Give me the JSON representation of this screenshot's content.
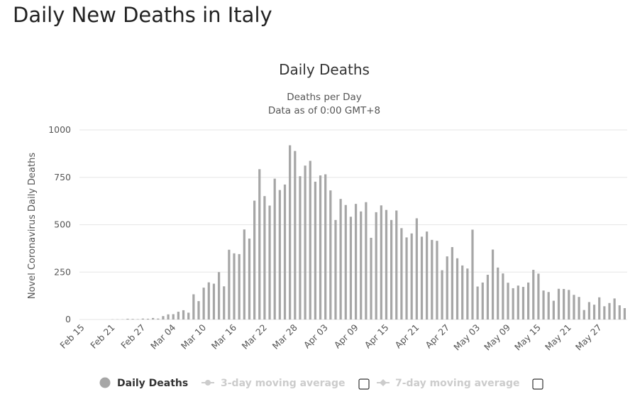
{
  "page": {
    "title": "Daily New Deaths in Italy"
  },
  "colors": {
    "bar": "#a6a6a6",
    "grid": "#e6e6e6",
    "legend_active": "#333333",
    "legend_inactive": "#cccccc",
    "legend_marker_active": "#a6a6a6"
  },
  "legend": {
    "items": [
      {
        "label": "Daily Deaths",
        "active": true,
        "has_checkbox": false,
        "marker": "circle"
      },
      {
        "label": "3-day moving average",
        "active": false,
        "has_checkbox": true,
        "marker": "line-circle"
      },
      {
        "label": "7-day moving average",
        "active": false,
        "has_checkbox": true,
        "marker": "line-diamond"
      }
    ]
  },
  "chart_data": {
    "type": "bar",
    "title": "Daily Deaths",
    "subtitle_lines": [
      "Deaths per Day",
      "Data as of 0:00 GMT+8"
    ],
    "ylabel": "Novel Coronavirus Daily Deaths",
    "xlabel": "",
    "ylim": [
      0,
      1000
    ],
    "yticks": [
      0,
      250,
      500,
      750,
      1000
    ],
    "grid": true,
    "legend_position": "bottom",
    "x_tick_labels": [
      "Feb 15",
      "Feb 21",
      "Feb 27",
      "Mar 04",
      "Mar 10",
      "Mar 16",
      "Mar 22",
      "Mar 28",
      "Apr 03",
      "Apr 09",
      "Apr 15",
      "Apr 21",
      "Apr 27",
      "May 03",
      "May 09",
      "May 15",
      "May 21",
      "May 27"
    ],
    "series": [
      {
        "name": "Daily Deaths",
        "categories": [
          "Feb 15",
          "Feb 16",
          "Feb 17",
          "Feb 18",
          "Feb 19",
          "Feb 20",
          "Feb 21",
          "Feb 22",
          "Feb 23",
          "Feb 24",
          "Feb 25",
          "Feb 26",
          "Feb 27",
          "Feb 28",
          "Feb 29",
          "Mar 01",
          "Mar 02",
          "Mar 03",
          "Mar 04",
          "Mar 05",
          "Mar 06",
          "Mar 07",
          "Mar 08",
          "Mar 09",
          "Mar 10",
          "Mar 11",
          "Mar 12",
          "Mar 13",
          "Mar 14",
          "Mar 15",
          "Mar 16",
          "Mar 17",
          "Mar 18",
          "Mar 19",
          "Mar 20",
          "Mar 21",
          "Mar 22",
          "Mar 23",
          "Mar 24",
          "Mar 25",
          "Mar 26",
          "Mar 27",
          "Mar 28",
          "Mar 29",
          "Mar 30",
          "Mar 31",
          "Apr 01",
          "Apr 02",
          "Apr 03",
          "Apr 04",
          "Apr 05",
          "Apr 06",
          "Apr 07",
          "Apr 08",
          "Apr 09",
          "Apr 10",
          "Apr 11",
          "Apr 12",
          "Apr 13",
          "Apr 14",
          "Apr 15",
          "Apr 16",
          "Apr 17",
          "Apr 18",
          "Apr 19",
          "Apr 20",
          "Apr 21",
          "Apr 22",
          "Apr 23",
          "Apr 24",
          "Apr 25",
          "Apr 26",
          "Apr 27",
          "Apr 28",
          "Apr 29",
          "Apr 30",
          "May 01",
          "May 02",
          "May 03",
          "May 04",
          "May 05",
          "May 06",
          "May 07",
          "May 08",
          "May 09",
          "May 10",
          "May 11",
          "May 12",
          "May 13",
          "May 14",
          "May 15",
          "May 16",
          "May 17",
          "May 18",
          "May 19",
          "May 20",
          "May 21",
          "May 22",
          "May 23",
          "May 24",
          "May 25",
          "May 26",
          "May 27",
          "May 28",
          "May 29",
          "May 30",
          "May 31",
          "Jun 01"
        ],
        "values": [
          0,
          0,
          0,
          0,
          0,
          0,
          1,
          1,
          1,
          4,
          3,
          2,
          5,
          4,
          8,
          5,
          18,
          27,
          28,
          41,
          49,
          36,
          133,
          97,
          168,
          196,
          189,
          250,
          175,
          368,
          349,
          345,
          475,
          427,
          627,
          793,
          651,
          601,
          743,
          683,
          712,
          919,
          889,
          756,
          812,
          837,
          727,
          760,
          766,
          681,
          525,
          636,
          604,
          542,
          610,
          570,
          619,
          431,
          566,
          602,
          578,
          525,
          575,
          482,
          433,
          454,
          534,
          437,
          464,
          420,
          415,
          260,
          333,
          382,
          323,
          285,
          269,
          474,
          174,
          195,
          236,
          369,
          274,
          243,
          194,
          165,
          179,
          172,
          195,
          262,
          242,
          153,
          145,
          99,
          162,
          161,
          156,
          130,
          119,
          50,
          92,
          78,
          117,
          70,
          87,
          111,
          75,
          60
        ]
      }
    ]
  }
}
